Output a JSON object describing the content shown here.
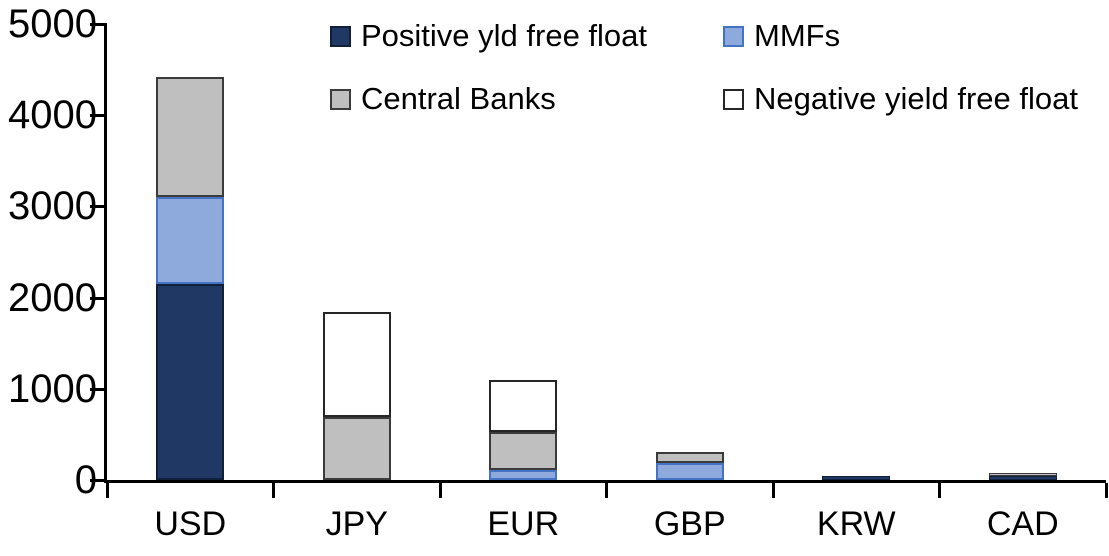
{
  "chart_data": {
    "type": "bar",
    "stacked": true,
    "title": "",
    "categories": [
      "USD",
      "JPY",
      "EUR",
      "GBP",
      "KRW",
      "CAD"
    ],
    "series": [
      {
        "name": "Positive yld free float",
        "color": "#1F3864",
        "border_color": "#10203A",
        "values": [
          2150,
          0,
          0,
          0,
          40,
          40
        ]
      },
      {
        "name": "MMFs",
        "color": "#8EA9DB",
        "border_color": "#4472C4",
        "values": [
          950,
          0,
          110,
          190,
          0,
          0
        ]
      },
      {
        "name": "Central Banks",
        "color": "#BFBFBF",
        "border_color": "#3B3B3B",
        "values": [
          1320,
          690,
          420,
          120,
          0,
          25
        ]
      },
      {
        "name": "Negative yield free float",
        "color": "#FFFFFF",
        "border_color": "#262626",
        "values": [
          0,
          1150,
          570,
          0,
          0,
          0
        ]
      }
    ],
    "ylim": [
      0,
      5000
    ],
    "yticks": [
      0,
      1000,
      2000,
      3000,
      4000,
      5000
    ],
    "ytick_labels": [
      "0",
      "1000",
      "2000",
      "3000",
      "4000",
      "5000"
    ],
    "legend_position": "top, two columns, two rows",
    "grid": false,
    "axis_color": "#000000",
    "background_color": "#FFFFFF"
  }
}
